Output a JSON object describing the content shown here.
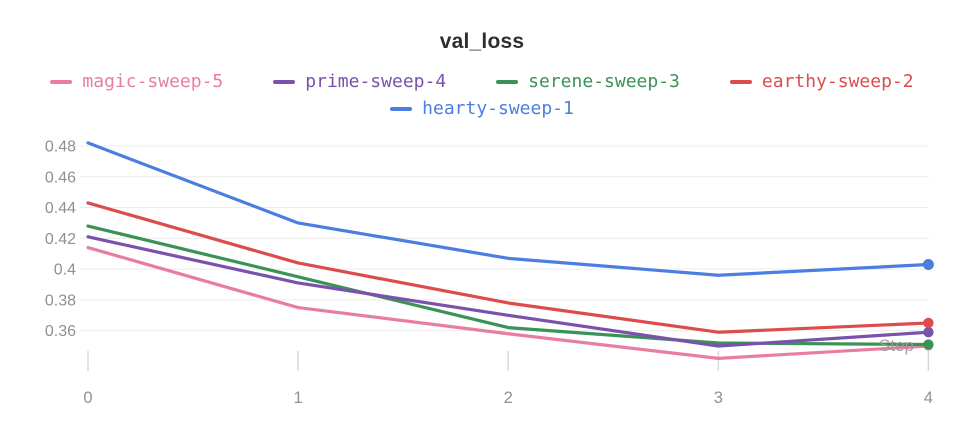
{
  "panel_title": "val_loss",
  "legend": {
    "row1": [
      {
        "label": "magic-sweep-5",
        "color": "#e87da0"
      },
      {
        "label": "prime-sweep-4",
        "color": "#7a51ad"
      },
      {
        "label": "serene-sweep-3",
        "color": "#3b9257"
      },
      {
        "label": "earthy-sweep-2",
        "color": "#dd4c4c"
      }
    ],
    "row2": [
      {
        "label": "hearty-sweep-1",
        "color": "#4b7ee0"
      }
    ]
  },
  "chart_data": {
    "type": "line",
    "title": "val_loss",
    "xlabel": "Step",
    "ylabel": "",
    "x": [
      0,
      1,
      2,
      3,
      4
    ],
    "xtick_labels": [
      "0",
      "1",
      "2",
      "3",
      "4"
    ],
    "yticks": [
      0.48,
      0.46,
      0.44,
      0.42,
      0.4,
      0.38,
      0.36
    ],
    "ytick_labels": [
      "0.48",
      "0.46",
      "0.44",
      "0.42",
      "0.4",
      "0.38",
      "0.36"
    ],
    "ylim": [
      0.335,
      0.49
    ],
    "grid": "horizontal",
    "legend_position": "top",
    "end_markers": true,
    "series": [
      {
        "name": "magic-sweep-5",
        "color": "#e87da0",
        "values": [
          0.414,
          0.375,
          0.358,
          0.342,
          0.35
        ]
      },
      {
        "name": "prime-sweep-4",
        "color": "#7a51ad",
        "values": [
          0.421,
          0.391,
          0.37,
          0.35,
          0.359
        ]
      },
      {
        "name": "serene-sweep-3",
        "color": "#3b9257",
        "values": [
          0.428,
          0.395,
          0.362,
          0.352,
          0.351
        ]
      },
      {
        "name": "earthy-sweep-2",
        "color": "#dd4c4c",
        "values": [
          0.443,
          0.404,
          0.378,
          0.359,
          0.365
        ]
      },
      {
        "name": "hearty-sweep-1",
        "color": "#4b7ee0",
        "values": [
          0.482,
          0.43,
          0.407,
          0.396,
          0.403
        ]
      }
    ],
    "draw_order": [
      "magic-sweep-5",
      "serene-sweep-3",
      "prime-sweep-4",
      "earthy-sweep-2",
      "hearty-sweep-1"
    ]
  },
  "colors": {
    "grid": "#ececec",
    "tick": "#d8d8d8",
    "axis_label": "#909090",
    "title": "#2f2f2f",
    "step_label": "#999999"
  }
}
